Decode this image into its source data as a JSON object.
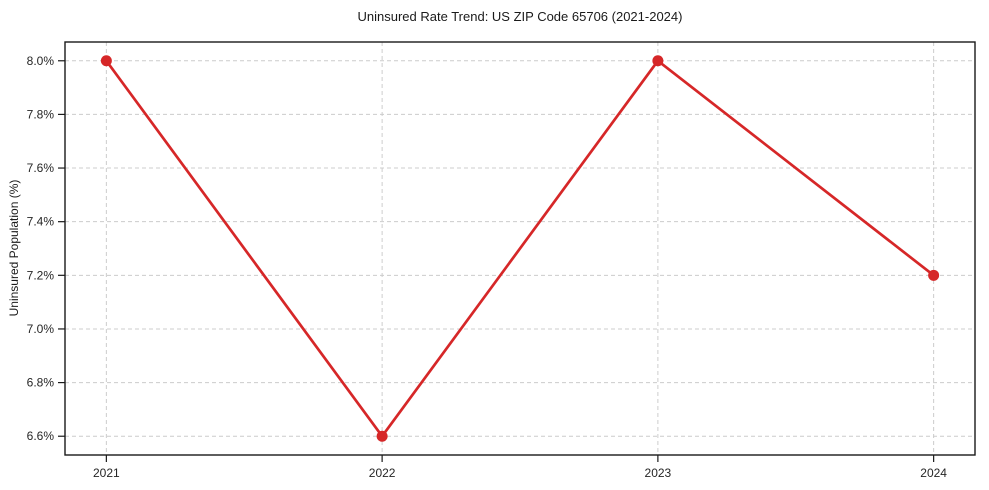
{
  "chart_data": {
    "type": "line",
    "title": "Uninsured Rate Trend: US ZIP Code 65706 (2021-2024)",
    "xlabel": "",
    "ylabel": "Uninsured Population (%)",
    "x": [
      2021,
      2022,
      2023,
      2024
    ],
    "x_tick_labels": [
      "2021",
      "2022",
      "2023",
      "2024"
    ],
    "values": [
      8.0,
      6.6,
      8.0,
      7.2
    ],
    "yticks": [
      6.6,
      6.8,
      7.0,
      7.2,
      7.4,
      7.6,
      7.8,
      8.0
    ],
    "y_tick_labels": [
      "6.6%",
      "6.8%",
      "7.0%",
      "7.2%",
      "7.4%",
      "7.6%",
      "7.8%",
      "8.0%"
    ],
    "xlim": [
      2020.85,
      2024.15
    ],
    "ylim": [
      6.53,
      8.07
    ],
    "grid": true,
    "legend": "none",
    "colors": {
      "line": "#d62728",
      "marker": "#d62728",
      "grid": "#cccccc",
      "spine": "#1a1a1a",
      "tick_text": "#262626",
      "title_text": "#1a1a1a",
      "background": "#ffffff"
    },
    "marker_radius": 5.5,
    "line_width": 2.7
  }
}
